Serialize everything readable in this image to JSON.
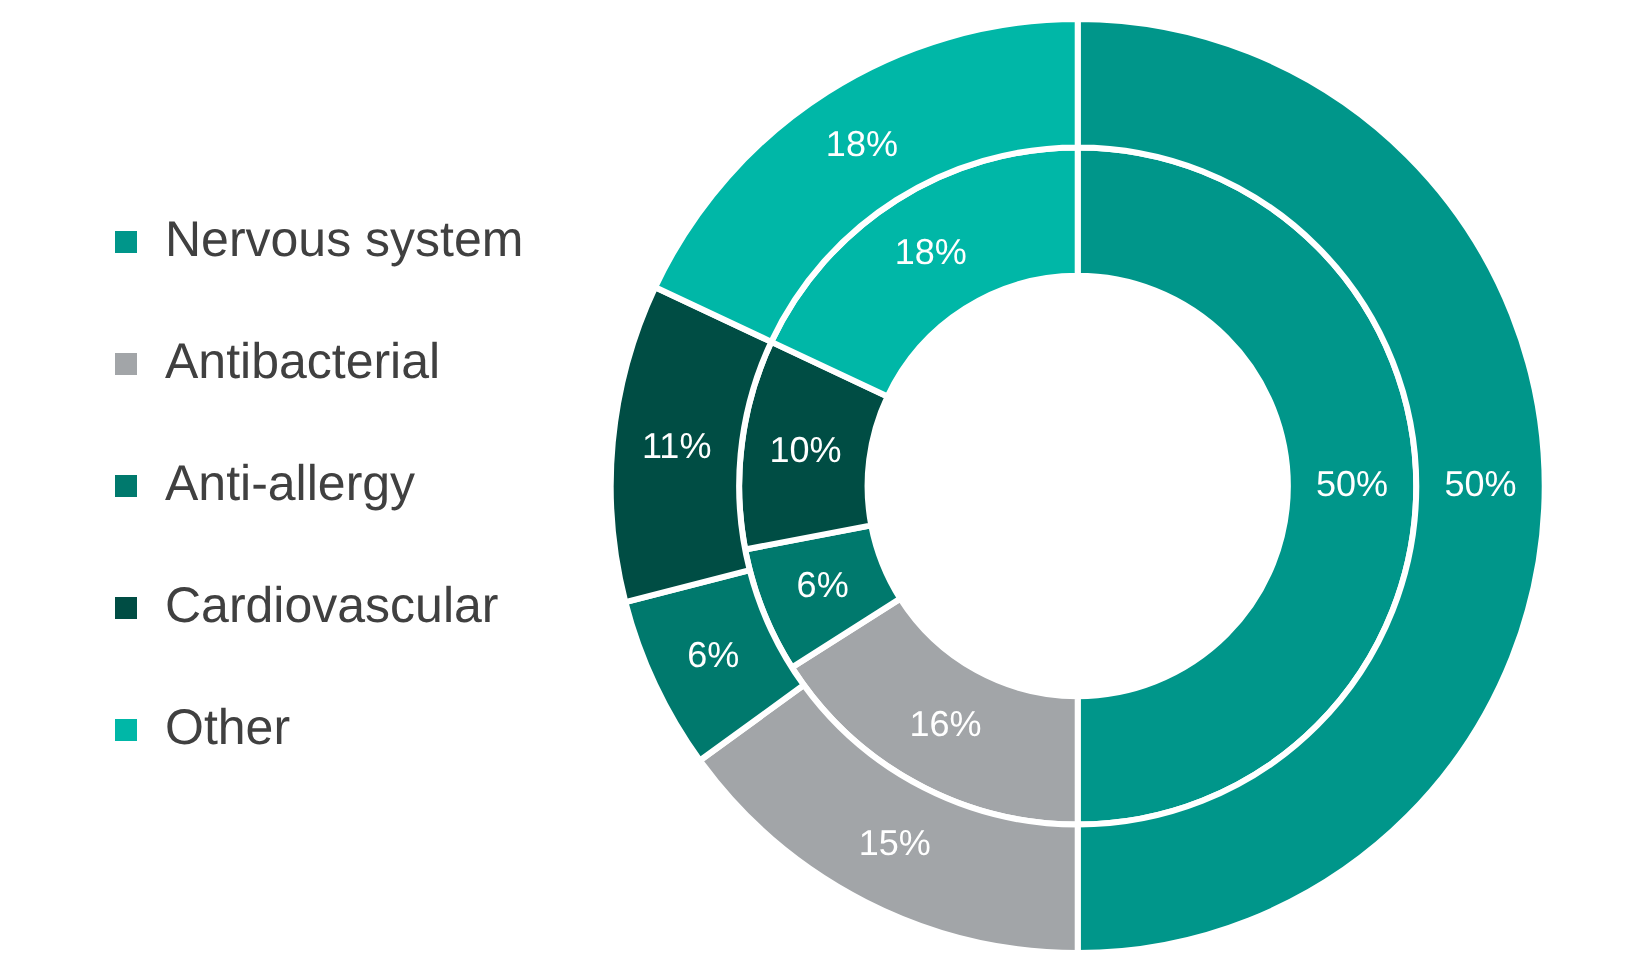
{
  "chart_data": {
    "type": "donut",
    "categories": [
      "Nervous system",
      "Antibacterial",
      "Anti-allergy",
      "Cardiovascular",
      "Other"
    ],
    "colors": [
      "#00968a",
      "#a2a5a8",
      "#00796d",
      "#004d44",
      "#00b7a7"
    ],
    "series": [
      {
        "values": [
          50,
          15,
          6,
          11,
          18
        ],
        "value_labels": [
          "50%",
          "15%",
          "6%",
          "11%",
          "18%"
        ]
      },
      {
        "values": [
          50,
          16,
          6,
          10,
          18
        ],
        "value_labels": [
          "50%",
          "16%",
          "6%",
          "10%",
          "18%"
        ]
      }
    ],
    "legend": "left"
  }
}
